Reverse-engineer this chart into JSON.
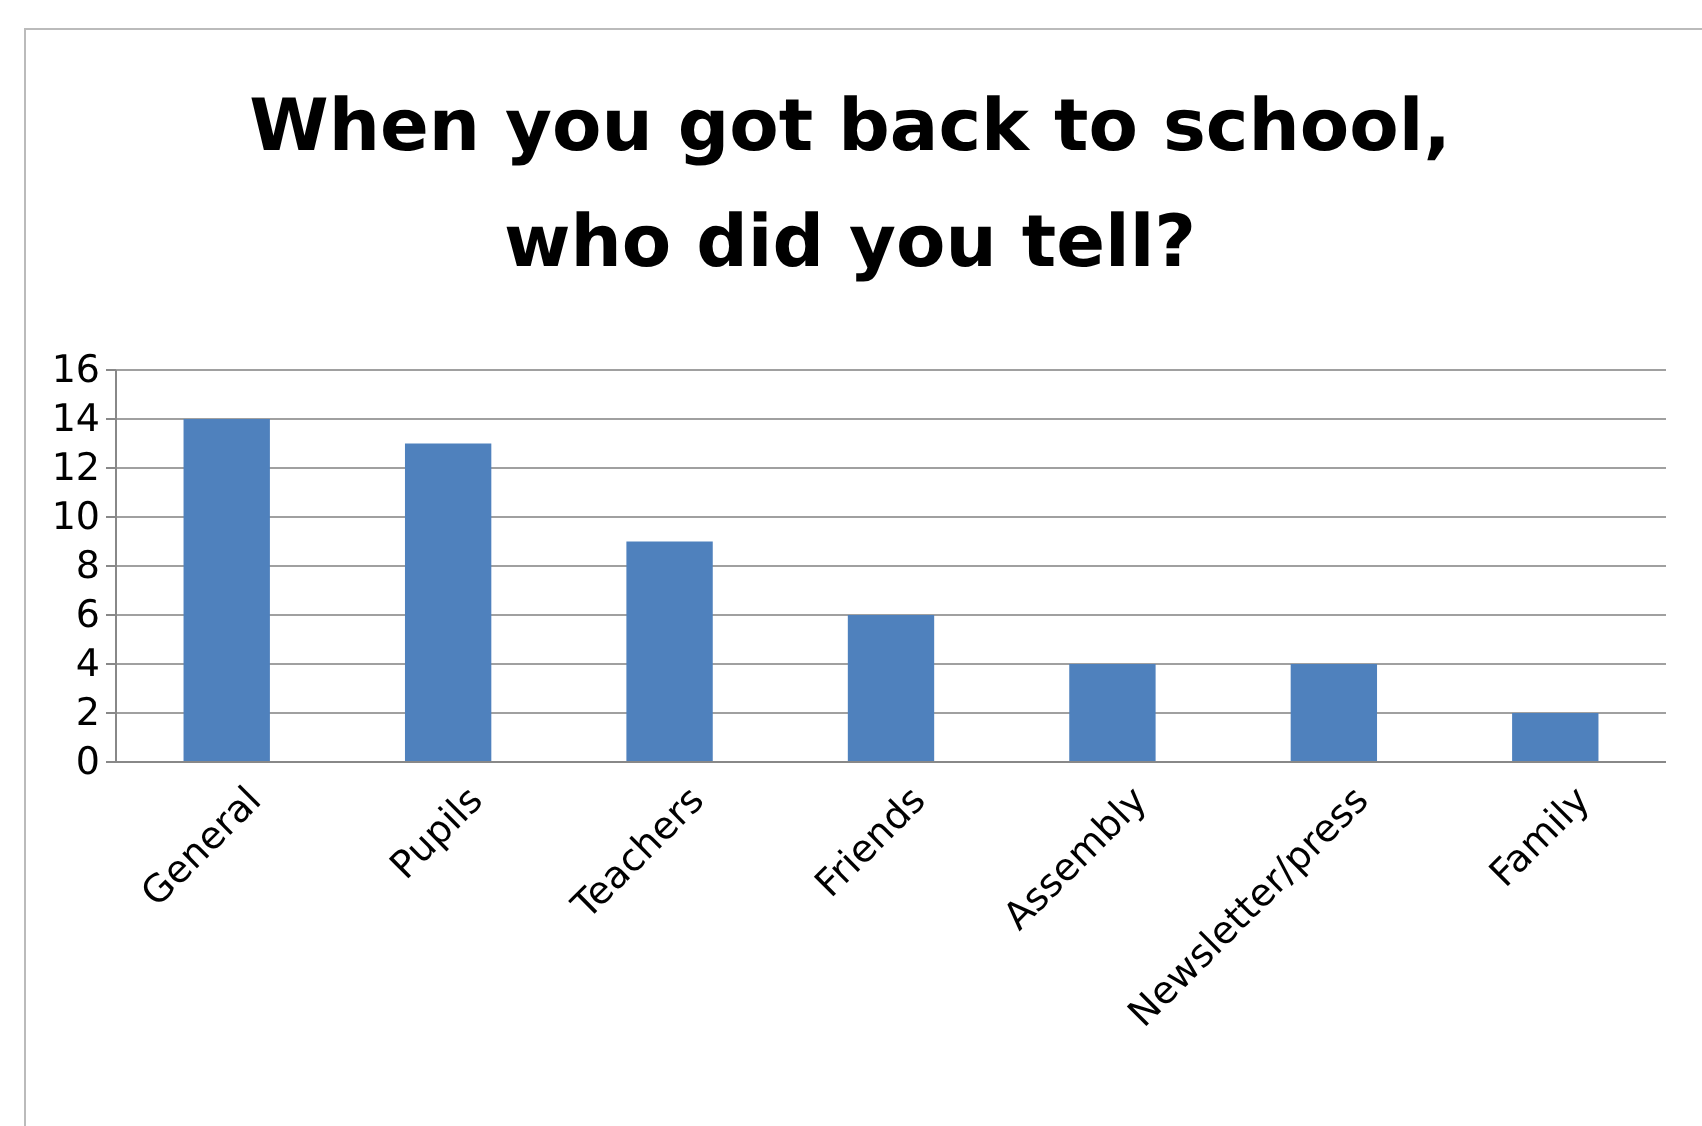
{
  "chart_data": {
    "type": "bar",
    "title": "When you got back to school,\nwho did you tell?",
    "categories": [
      "General",
      "Pupils",
      "Teachers",
      "Friends",
      "Assembly",
      "Newsletter/press",
      "Family"
    ],
    "values": [
      14,
      13,
      9,
      6,
      4,
      4,
      2
    ],
    "color": "#4f81bd",
    "ylim": [
      0,
      16
    ],
    "yticks": [
      0,
      2,
      4,
      6,
      8,
      10,
      12,
      14,
      16
    ],
    "grid": "y"
  }
}
